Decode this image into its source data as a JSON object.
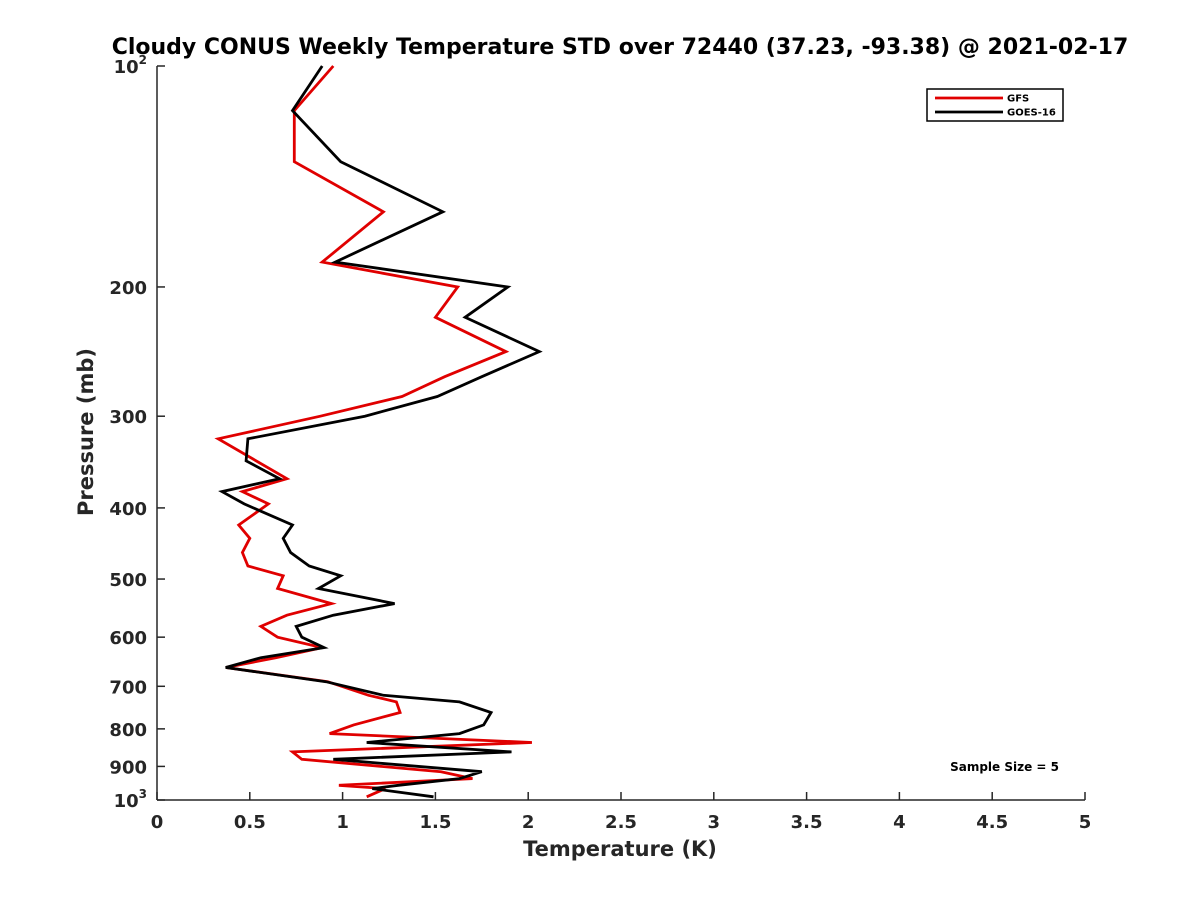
{
  "chart_data": {
    "type": "line",
    "title": "Cloudy CONUS Weekly Temperature STD over 72440 (37.23, -93.38) @ 2021-02-17",
    "xlabel": "Temperature (K)",
    "ylabel": "Pressure (mb)",
    "xlim": [
      0,
      5
    ],
    "ylim": [
      100,
      1000
    ],
    "y_scale": "log",
    "y_reversed": true,
    "x_ticks": [
      0,
      0.5,
      1,
      1.5,
      2,
      2.5,
      3,
      3.5,
      4,
      4.5,
      5
    ],
    "x_tick_labels": [
      "0",
      "0.5",
      "1",
      "1.5",
      "2",
      "2.5",
      "3",
      "3.5",
      "4",
      "4.5",
      "5"
    ],
    "y_ticks": [
      {
        "value": 100,
        "base": "10",
        "exp": "2"
      },
      {
        "value": 200,
        "label": "200"
      },
      {
        "value": 300,
        "label": "300"
      },
      {
        "value": 400,
        "label": "400"
      },
      {
        "value": 500,
        "label": "500"
      },
      {
        "value": 600,
        "label": "600"
      },
      {
        "value": 700,
        "label": "700"
      },
      {
        "value": 800,
        "label": "800"
      },
      {
        "value": 900,
        "label": "900"
      },
      {
        "value": 1000,
        "base": "10",
        "exp": "3"
      }
    ],
    "grid": false,
    "legend_position": "top-right",
    "annotation": "Sample Size = 5",
    "series": [
      {
        "name": "GFS",
        "color": "#e00000",
        "points": [
          [
            0.95,
            100
          ],
          [
            0.74,
            115
          ],
          [
            0.74,
            135
          ],
          [
            1.22,
            158
          ],
          [
            0.89,
            185
          ],
          [
            1.62,
            200
          ],
          [
            1.5,
            220
          ],
          [
            1.88,
            245
          ],
          [
            1.55,
            265
          ],
          [
            1.32,
            282
          ],
          [
            0.88,
            300
          ],
          [
            0.33,
            322
          ],
          [
            0.7,
            365
          ],
          [
            0.46,
            380
          ],
          [
            0.6,
            395
          ],
          [
            0.44,
            422
          ],
          [
            0.5,
            440
          ],
          [
            0.46,
            460
          ],
          [
            0.49,
            480
          ],
          [
            0.68,
            495
          ],
          [
            0.65,
            515
          ],
          [
            0.94,
            540
          ],
          [
            0.7,
            560
          ],
          [
            0.56,
            580
          ],
          [
            0.65,
            600
          ],
          [
            0.89,
            620
          ],
          [
            0.64,
            640
          ],
          [
            0.37,
            660
          ],
          [
            0.92,
            690
          ],
          [
            1.14,
            720
          ],
          [
            1.29,
            735
          ],
          [
            1.31,
            760
          ],
          [
            1.06,
            790
          ],
          [
            0.93,
            812
          ],
          [
            2.02,
            835
          ],
          [
            0.73,
            860
          ],
          [
            0.78,
            880
          ],
          [
            1.53,
            915
          ],
          [
            1.7,
            935
          ],
          [
            0.98,
            955
          ],
          [
            1.23,
            965
          ],
          [
            1.13,
            990
          ]
        ]
      },
      {
        "name": "GOES-16",
        "color": "#000000",
        "points": [
          [
            0.89,
            100
          ],
          [
            0.73,
            115
          ],
          [
            0.99,
            135
          ],
          [
            1.54,
            158
          ],
          [
            0.96,
            185
          ],
          [
            1.89,
            200
          ],
          [
            1.66,
            220
          ],
          [
            2.06,
            245
          ],
          [
            1.75,
            265
          ],
          [
            1.51,
            282
          ],
          [
            1.12,
            300
          ],
          [
            0.49,
            322
          ],
          [
            0.48,
            345
          ],
          [
            0.66,
            365
          ],
          [
            0.35,
            380
          ],
          [
            0.47,
            395
          ],
          [
            0.73,
            422
          ],
          [
            0.68,
            440
          ],
          [
            0.72,
            460
          ],
          [
            0.82,
            480
          ],
          [
            0.99,
            495
          ],
          [
            0.87,
            515
          ],
          [
            1.28,
            540
          ],
          [
            0.95,
            560
          ],
          [
            0.75,
            580
          ],
          [
            0.78,
            600
          ],
          [
            0.9,
            620
          ],
          [
            0.56,
            640
          ],
          [
            0.37,
            660
          ],
          [
            0.91,
            690
          ],
          [
            1.22,
            720
          ],
          [
            1.63,
            735
          ],
          [
            1.8,
            760
          ],
          [
            1.76,
            790
          ],
          [
            1.63,
            812
          ],
          [
            1.13,
            835
          ],
          [
            1.91,
            860
          ],
          [
            0.95,
            880
          ],
          [
            1.75,
            915
          ],
          [
            1.63,
            935
          ],
          [
            1.3,
            955
          ],
          [
            1.16,
            965
          ],
          [
            1.49,
            990
          ]
        ]
      }
    ]
  }
}
